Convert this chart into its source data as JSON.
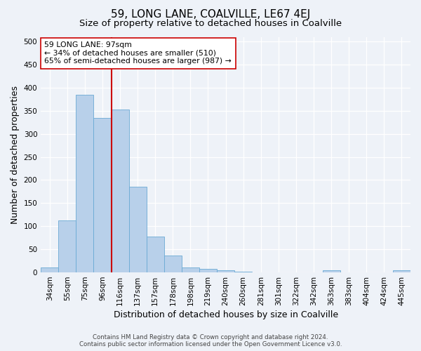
{
  "title": "59, LONG LANE, COALVILLE, LE67 4EJ",
  "subtitle": "Size of property relative to detached houses in Coalville",
  "xlabel": "Distribution of detached houses by size in Coalville",
  "ylabel": "Number of detached properties",
  "categories": [
    "34sqm",
    "55sqm",
    "75sqm",
    "96sqm",
    "116sqm",
    "137sqm",
    "157sqm",
    "178sqm",
    "198sqm",
    "219sqm",
    "240sqm",
    "260sqm",
    "281sqm",
    "301sqm",
    "322sqm",
    "342sqm",
    "363sqm",
    "383sqm",
    "404sqm",
    "424sqm",
    "445sqm"
  ],
  "values": [
    10,
    113,
    385,
    335,
    353,
    185,
    77,
    37,
    11,
    7,
    4,
    1,
    0,
    0,
    0,
    0,
    4,
    0,
    0,
    0,
    4
  ],
  "bar_color": "#b8d0ea",
  "bar_edge_color": "#6aaad4",
  "vline_x": 3.5,
  "vline_color": "#cc0000",
  "annotation_line1": "59 LONG LANE: 97sqm",
  "annotation_line2": "← 34% of detached houses are smaller (510)",
  "annotation_line3": "65% of semi-detached houses are larger (987) →",
  "annotation_box_color": "white",
  "annotation_box_edge": "#cc0000",
  "ylim": [
    0,
    510
  ],
  "yticks": [
    0,
    50,
    100,
    150,
    200,
    250,
    300,
    350,
    400,
    450,
    500
  ],
  "footer_line1": "Contains HM Land Registry data © Crown copyright and database right 2024.",
  "footer_line2": "Contains public sector information licensed under the Open Government Licence v3.0.",
  "background_color": "#eef2f8",
  "grid_color": "#ffffff",
  "title_fontsize": 11,
  "subtitle_fontsize": 9.5,
  "tick_fontsize": 7.5,
  "ylabel_fontsize": 9,
  "xlabel_fontsize": 9,
  "footer_fontsize": 6.2,
  "annot_fontsize": 7.8
}
